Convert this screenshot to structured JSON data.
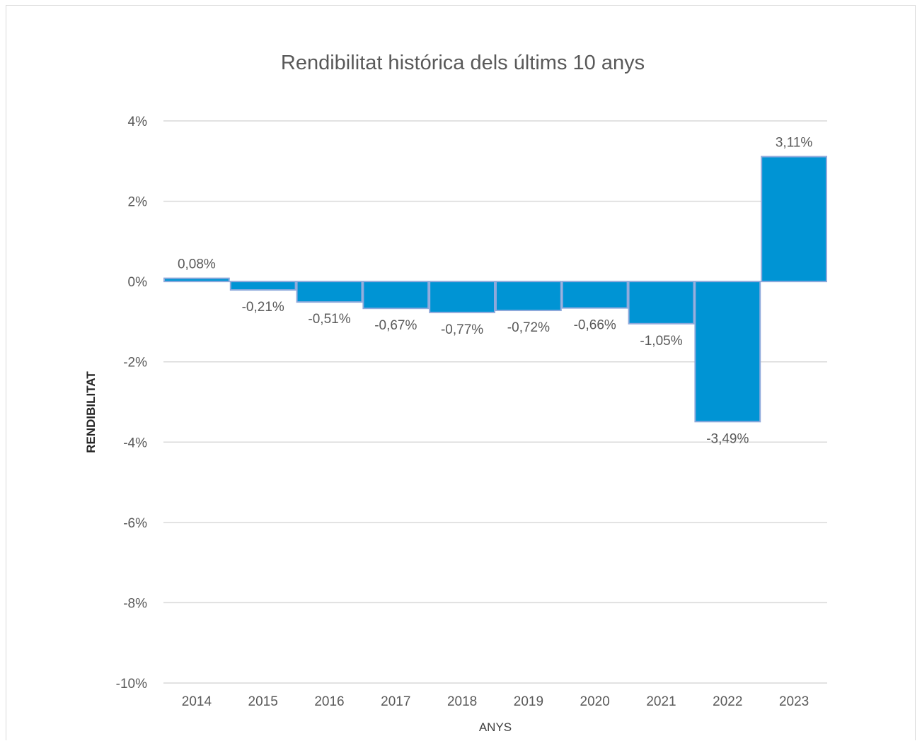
{
  "chart_data": {
    "type": "bar",
    "title": "Rendibilitat histórica dels últims 10 anys",
    "xlabel": "ANYS",
    "ylabel": "RENDIBILITAT",
    "categories": [
      "2014",
      "2015",
      "2016",
      "2017",
      "2018",
      "2019",
      "2020",
      "2021",
      "2022",
      "2023"
    ],
    "values": [
      0.08,
      -0.21,
      -0.51,
      -0.67,
      -0.77,
      -0.72,
      -0.66,
      -1.05,
      -3.49,
      3.11
    ],
    "data_labels": [
      "0,08%",
      "-0,21%",
      "-0,51%",
      "-0,67%",
      "-0,77%",
      "-0,72%",
      "-0,66%",
      "-1,05%",
      "-3,49%",
      "3,11%"
    ],
    "ylim": [
      -10,
      4
    ],
    "yticks": [
      4,
      2,
      0,
      -2,
      -4,
      -6,
      -8,
      -10
    ],
    "ytick_labels": [
      "4%",
      "2%",
      "0%",
      "-2%",
      "-4%",
      "-6%",
      "-8%",
      "-10%"
    ],
    "grid": true,
    "legend": "none",
    "colors": {
      "bar_fill": "#0094D4",
      "bar_edge": "#8EA9DB",
      "gridline": "#d9d9d9",
      "text": "#595959"
    }
  }
}
